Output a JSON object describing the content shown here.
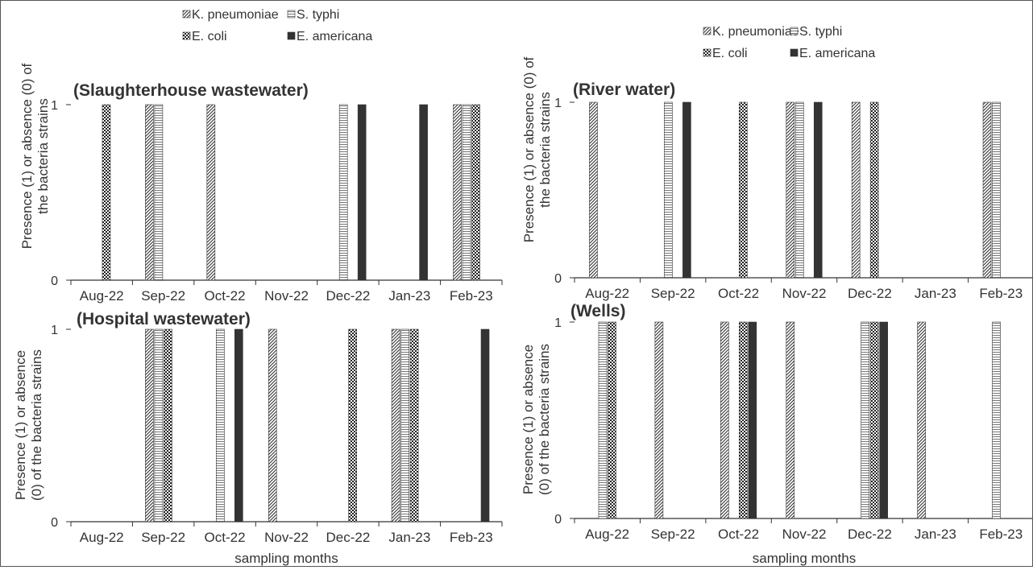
{
  "legend": {
    "items": [
      {
        "name": "K. pneumoniae",
        "pattern": "diagonal-hatch"
      },
      {
        "name": "S. typhi",
        "pattern": "horizontal-lines"
      },
      {
        "name": "E. coli",
        "pattern": "dotted-grid"
      },
      {
        "name": "E. americana",
        "pattern": "solid-dark"
      }
    ]
  },
  "colors": {
    "axis": "#333333",
    "text": "#333333",
    "dark_fill": "#333333"
  },
  "chart_data": [
    {
      "type": "bar",
      "panel": "top-left",
      "title": "(Slaughterhouse wastewater)",
      "ylabel": "Presence (1) or absence (0) of the bacteria strains",
      "xlabel": "",
      "yticks": [
        "0",
        "1"
      ],
      "ylim": [
        0,
        1.1
      ],
      "categories": [
        "Aug-22",
        "Sep-22",
        "Oct-22",
        "Nov-22",
        "Dec-22",
        "Jan-23",
        "Feb-23"
      ],
      "series": [
        {
          "name": "K. pneumoniae",
          "values": [
            0,
            1,
            1,
            0,
            0,
            0,
            1
          ]
        },
        {
          "name": "S. typhi",
          "values": [
            0,
            1,
            0,
            0,
            1,
            0,
            1
          ]
        },
        {
          "name": "E. coli",
          "values": [
            1,
            0,
            0,
            0,
            0,
            0,
            1
          ]
        },
        {
          "name": "E. americana",
          "values": [
            0,
            0,
            0,
            0,
            1,
            1,
            0
          ]
        }
      ]
    },
    {
      "type": "bar",
      "panel": "top-right",
      "title": "(River water)",
      "ylabel": "Presence (1) or absence (0) of the bacteria strains",
      "xlabel": "",
      "yticks": [
        "0",
        "1"
      ],
      "ylim": [
        0,
        1.1
      ],
      "categories": [
        "Aug-22",
        "Sep-22",
        "Oct-22",
        "Nov-22",
        "Dec-22",
        "Jan-23",
        "Feb-23"
      ],
      "series": [
        {
          "name": "K. pneumoniae",
          "values": [
            1,
            0,
            0,
            1,
            1,
            0,
            1
          ]
        },
        {
          "name": "S. typhi",
          "values": [
            0,
            1,
            0,
            1,
            0,
            0,
            1
          ]
        },
        {
          "name": "E. coli",
          "values": [
            0,
            0,
            1,
            0,
            1,
            0,
            0
          ]
        },
        {
          "name": "E. americana",
          "values": [
            0,
            1,
            0,
            1,
            0,
            0,
            0
          ]
        }
      ]
    },
    {
      "type": "bar",
      "panel": "bottom-left",
      "title": "(Hospital wastewater)",
      "ylabel": "Presence (1) or absence (0) of the bacteria strains",
      "xlabel": "sampling months",
      "yticks": [
        "0",
        "1"
      ],
      "ylim": [
        0,
        1.1
      ],
      "categories": [
        "Aug-22",
        "Sep-22",
        "Oct-22",
        "Nov-22",
        "Dec-22",
        "Jan-23",
        "Feb-23"
      ],
      "series": [
        {
          "name": "K. pneumoniae",
          "values": [
            0,
            1,
            0,
            1,
            0,
            1,
            0
          ]
        },
        {
          "name": "S. typhi",
          "values": [
            0,
            1,
            1,
            0,
            0,
            1,
            0
          ]
        },
        {
          "name": "E. coli",
          "values": [
            0,
            1,
            0,
            0,
            1,
            1,
            0
          ]
        },
        {
          "name": "E. americana",
          "values": [
            0,
            0,
            1,
            0,
            0,
            0,
            1
          ]
        }
      ]
    },
    {
      "type": "bar",
      "panel": "bottom-right",
      "title": "(Wells)",
      "ylabel": "Presence (1) or absence (0) of the bacteria strains",
      "xlabel": "sampling months",
      "yticks": [
        "0",
        "1"
      ],
      "ylim": [
        0,
        1.1
      ],
      "categories": [
        "Aug-22",
        "Sep-22",
        "Oct-22",
        "Nov-22",
        "Dec-22",
        "Jan-23",
        "Feb-23"
      ],
      "series": [
        {
          "name": "K. pneumoniae",
          "values": [
            0,
            1,
            1,
            1,
            0,
            1,
            0
          ]
        },
        {
          "name": "S. typhi",
          "values": [
            1,
            0,
            0,
            0,
            1,
            0,
            1
          ]
        },
        {
          "name": "E. coli",
          "values": [
            1,
            0,
            1,
            0,
            1,
            0,
            0
          ]
        },
        {
          "name": "E. americana",
          "values": [
            0,
            0,
            1,
            0,
            1,
            0,
            0
          ]
        }
      ]
    }
  ]
}
